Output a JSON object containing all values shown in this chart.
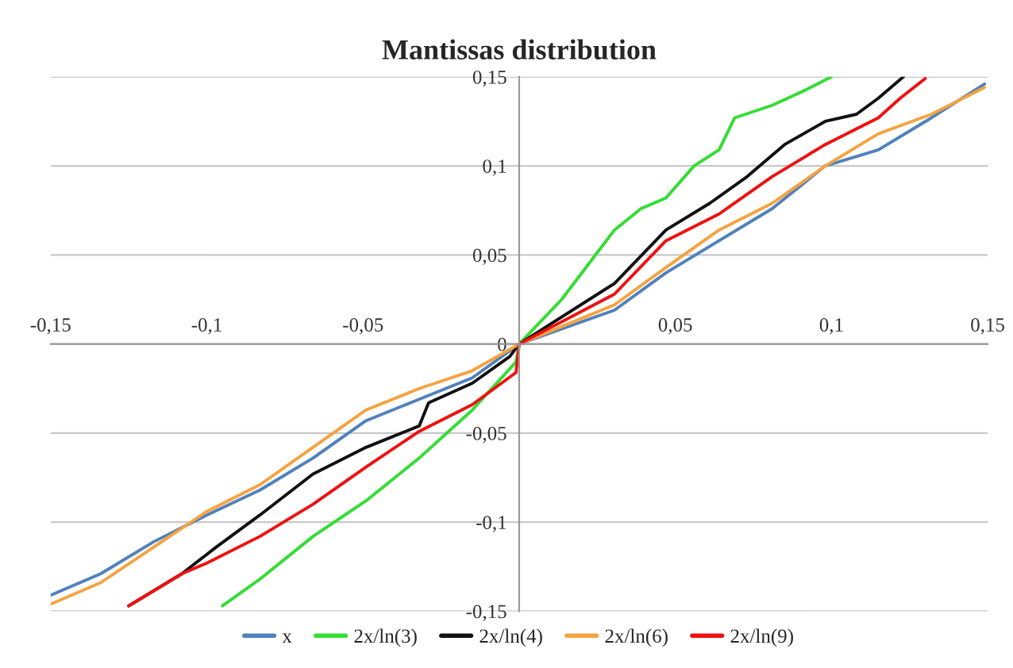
{
  "chart_data": {
    "type": "line",
    "title": "Mantissas distribution",
    "xlim": [
      -0.15,
      0.15
    ],
    "ylim": [
      -0.15,
      0.15
    ],
    "xticks": [
      {
        "value": -0.15,
        "label": "-0,15"
      },
      {
        "value": -0.1,
        "label": "-0,1"
      },
      {
        "value": -0.05,
        "label": "-0,05"
      },
      {
        "value": 0,
        "label": null
      },
      {
        "value": 0.05,
        "label": "0,05"
      },
      {
        "value": 0.1,
        "label": "0,1"
      },
      {
        "value": 0.15,
        "label": "0,15"
      }
    ],
    "yticks": [
      {
        "value": -0.15,
        "label": "-0,15"
      },
      {
        "value": -0.1,
        "label": "-0,1"
      },
      {
        "value": -0.05,
        "label": "-0,05"
      },
      {
        "value": 0,
        "label": "0"
      },
      {
        "value": 0.05,
        "label": "0,05"
      },
      {
        "value": 0.1,
        "label": "0,1"
      },
      {
        "value": 0.15,
        "label": "0,15"
      }
    ],
    "grid": "y",
    "legend": "bottom",
    "marker": "none",
    "line_style": "solid",
    "series": [
      {
        "name": "x",
        "color": "#4f81bd",
        "x": [
          -0.15,
          -0.134,
          -0.117,
          -0.1,
          -0.083,
          -0.066,
          -0.049,
          -0.032,
          -0.015,
          0,
          0.0305,
          0.047,
          0.064,
          0.081,
          0.098,
          0.115,
          0.132,
          0.149
        ],
        "values": [
          -0.141,
          -0.129,
          -0.111,
          -0.096,
          -0.082,
          -0.064,
          -0.043,
          -0.031,
          -0.019,
          0,
          0.019,
          0.04,
          0.058,
          0.076,
          0.1,
          0.109,
          0.127,
          0.146
        ]
      },
      {
        "name": "2x/ln(3)",
        "color": "#33dd33",
        "x": [
          -0.095,
          -0.083,
          -0.066,
          -0.049,
          -0.032,
          -0.015,
          -0.001,
          0,
          0.0136,
          0.0305,
          0.039,
          0.047,
          0.056,
          0.064,
          0.069,
          0.081,
          0.091,
          0.1
        ],
        "values": [
          -0.147,
          -0.132,
          -0.108,
          -0.088,
          -0.064,
          -0.037,
          -0.01,
          0,
          0.025,
          0.064,
          0.076,
          0.082,
          0.1,
          0.109,
          0.127,
          0.134,
          0.142,
          0.15
        ]
      },
      {
        "name": "2x/ln(4)",
        "color": "#111111",
        "x": [
          -0.125,
          -0.108,
          -0.097,
          -0.083,
          -0.066,
          -0.049,
          -0.032,
          -0.029,
          -0.015,
          -0.003,
          0,
          0.0305,
          0.047,
          0.061,
          0.073,
          0.085,
          0.098,
          0.108,
          0.115,
          0.123
        ],
        "values": [
          -0.147,
          -0.129,
          -0.114,
          -0.096,
          -0.073,
          -0.058,
          -0.046,
          -0.033,
          -0.022,
          -0.007,
          0,
          0.034,
          0.064,
          0.079,
          0.094,
          0.112,
          0.125,
          0.129,
          0.138,
          0.15
        ]
      },
      {
        "name": "2x/ln(6)",
        "color": "#f5a340",
        "x": [
          -0.15,
          -0.134,
          -0.117,
          -0.1,
          -0.083,
          -0.066,
          -0.049,
          -0.032,
          -0.015,
          0,
          0.0305,
          0.047,
          0.064,
          0.081,
          0.098,
          0.115,
          0.132,
          0.149
        ],
        "values": [
          -0.146,
          -0.134,
          -0.114,
          -0.094,
          -0.079,
          -0.058,
          -0.037,
          -0.025,
          -0.015,
          0,
          0.022,
          0.043,
          0.064,
          0.079,
          0.1,
          0.118,
          0.129,
          0.144
        ]
      },
      {
        "name": "2x/ln(9)",
        "color": "#ee1111",
        "x": [
          -0.125,
          -0.108,
          -0.1,
          -0.083,
          -0.066,
          -0.049,
          -0.032,
          -0.015,
          -0.001,
          0,
          0.0305,
          0.047,
          0.064,
          0.081,
          0.098,
          0.115,
          0.122,
          0.13
        ],
        "values": [
          -0.147,
          -0.129,
          -0.123,
          -0.108,
          -0.09,
          -0.069,
          -0.049,
          -0.034,
          -0.016,
          0,
          0.028,
          0.058,
          0.073,
          0.094,
          0.112,
          0.127,
          0.138,
          0.149
        ]
      }
    ]
  }
}
